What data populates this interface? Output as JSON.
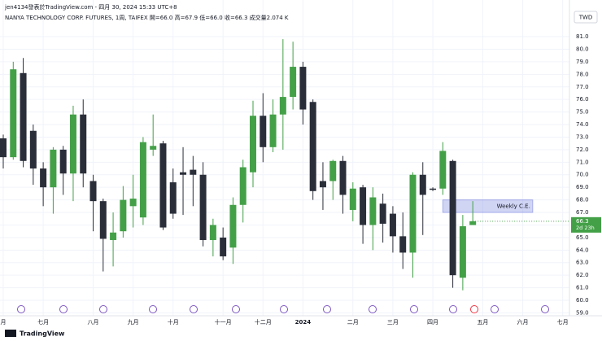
{
  "header": {
    "author_line": "jen4134發表於TradingView.com - 四月 30, 2024 15:33 UTC+8",
    "symbol": "NANYA TECHNOLOGY CORP. FUTURES, 1周, TAIFEX",
    "ohlc": [
      "開=66.0",
      "高=67.9",
      "低=66.0",
      "收=66.3",
      "成交量2.074 K"
    ]
  },
  "footer": {
    "brand": "TradingView"
  },
  "chart_data": {
    "type": "candlestick",
    "currency": "TWD",
    "categories": [
      "月",
      null,
      null,
      null,
      "七月",
      null,
      null,
      null,
      null,
      "八月",
      null,
      null,
      null,
      "九月",
      null,
      null,
      null,
      "十月",
      null,
      null,
      null,
      null,
      "十一月",
      null,
      null,
      null,
      "十二月",
      null,
      null,
      null,
      "2024",
      null,
      null,
      null,
      null,
      "二月",
      null,
      null,
      null,
      "三月",
      null,
      null,
      null,
      "四月",
      null,
      null,
      null,
      null,
      "五月",
      null,
      null,
      null,
      "六月",
      null,
      null,
      null,
      "七月"
    ],
    "open": [
      72.9,
      71.4,
      78.1,
      73.5,
      70.5,
      69.0,
      72.0,
      70.1,
      74.8,
      69.5,
      67.9,
      64.8,
      65.5,
      67.5,
      66.6,
      72.0,
      72.5,
      69.4,
      70.2,
      70.4,
      70.0,
      64.8,
      65.0,
      64.2,
      67.6,
      70.2,
      74.7,
      72.2,
      74.8,
      76.2,
      78.6,
      75.8,
      69.5,
      69.5,
      71.1,
      67.2,
      69.0,
      66.0,
      67.7,
      66.9,
      65.1,
      63.8,
      70.0,
      68.9,
      68.9,
      71.1,
      61.8,
      66.0,
      null,
      null,
      null,
      null,
      null,
      null,
      null,
      null,
      null
    ],
    "high": [
      73.2,
      79.0,
      79.3,
      74.0,
      71.0,
      72.2,
      72.3,
      75.5,
      76.0,
      70.0,
      68.1,
      67.0,
      69.1,
      70.0,
      73.0,
      74.8,
      72.7,
      70.5,
      72.2,
      71.5,
      71.0,
      66.5,
      65.8,
      68.2,
      71.2,
      75.9,
      76.5,
      76.0,
      80.8,
      80.6,
      79.0,
      76.0,
      71.0,
      71.2,
      71.5,
      69.4,
      69.2,
      69.0,
      68.5,
      67.5,
      67.0,
      70.2,
      71.0,
      69.0,
      72.6,
      71.2,
      66.8,
      67.9,
      null,
      null,
      null,
      null,
      null,
      null,
      null,
      null,
      null
    ],
    "low": [
      70.5,
      71.2,
      70.6,
      69.2,
      67.5,
      66.9,
      68.4,
      67.9,
      69.0,
      65.5,
      62.3,
      62.7,
      65.0,
      65.8,
      66.0,
      71.5,
      65.6,
      66.5,
      66.8,
      67.5,
      64.3,
      63.5,
      63.2,
      62.9,
      66.2,
      69.0,
      71.0,
      71.8,
      72.0,
      75.2,
      74.0,
      68.0,
      67.2,
      68.0,
      66.9,
      66.3,
      64.5,
      64.0,
      64.6,
      63.8,
      62.5,
      61.8,
      65.2,
      68.7,
      68.4,
      61.0,
      60.8,
      66.0,
      null,
      null,
      null,
      null,
      null,
      null,
      null,
      null,
      null
    ],
    "close": [
      71.4,
      78.4,
      71.1,
      70.5,
      69.0,
      72.0,
      70.1,
      74.8,
      70.1,
      67.9,
      64.9,
      65.4,
      68.0,
      68.1,
      72.6,
      72.3,
      65.8,
      66.9,
      70.0,
      70.0,
      64.8,
      66.0,
      63.5,
      67.6,
      70.6,
      74.7,
      72.2,
      74.8,
      76.2,
      78.6,
      75.2,
      68.7,
      69.0,
      71.1,
      68.4,
      68.9,
      66.0,
      68.2,
      66.1,
      65.1,
      63.8,
      70.0,
      68.4,
      68.8,
      71.9,
      62.0,
      65.9,
      66.3,
      null,
      null,
      null,
      null,
      null,
      null,
      null,
      null,
      null
    ],
    "up_color": "#43a047",
    "down_color": "#2a2e39",
    "ylim": [
      58.77,
      83.92
    ],
    "yticks": [
      {
        "value": 59,
        "label": "59.0"
      },
      {
        "value": 60,
        "label": "60.0"
      },
      {
        "value": 61,
        "label": "61.0"
      },
      {
        "value": 62,
        "label": "62.0"
      },
      {
        "value": 63,
        "label": "63.0"
      },
      {
        "value": 64,
        "label": "64.0"
      },
      {
        "value": 65,
        "label": "65.0"
      },
      {
        "value": 66,
        "label": "66.0"
      },
      {
        "value": 67,
        "label": "67.0"
      },
      {
        "value": 68,
        "label": "68.0"
      },
      {
        "value": 69,
        "label": "69.0"
      },
      {
        "value": 70,
        "label": "70.0"
      },
      {
        "value": 71,
        "label": "71.0"
      },
      {
        "value": 72,
        "label": "72.0"
      },
      {
        "value": 73,
        "label": "73.0"
      },
      {
        "value": 74,
        "label": "74.0"
      },
      {
        "value": 75,
        "label": "75.0"
      },
      {
        "value": 76,
        "label": "76.0"
      },
      {
        "value": 77,
        "label": "77.0"
      },
      {
        "value": 78,
        "label": "78.0"
      },
      {
        "value": 79,
        "label": "79.0"
      },
      {
        "value": 80,
        "label": "80.0"
      },
      {
        "value": 81,
        "label": "81.0"
      }
    ],
    "grid": true,
    "last_price": {
      "value": 66.3,
      "countdown": "2d 23h",
      "color": "#43a047"
    },
    "zone": {
      "label": "Weekly C.E.",
      "from": 67.0,
      "to": 68.0,
      "start": 44,
      "end": 53,
      "color": "#7b86e0"
    }
  }
}
